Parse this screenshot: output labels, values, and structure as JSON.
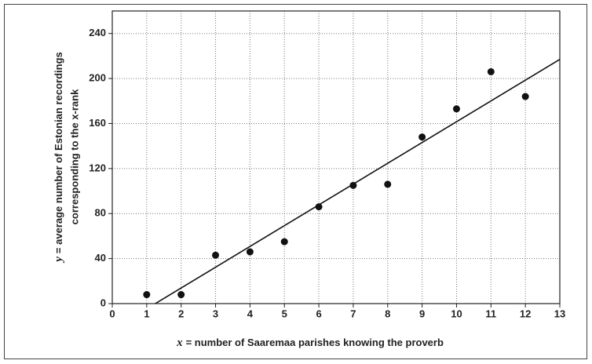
{
  "chart_data": {
    "type": "scatter",
    "xlabel": {
      "var": "x",
      "text": "= number of Saaremaa parishes knowing the proverb"
    },
    "ylabel": {
      "var": "y",
      "lines": [
        "= average number of Estonian recordings",
        "corresponding to the x-rank"
      ]
    },
    "x": [
      1,
      2,
      3,
      4,
      5,
      6,
      7,
      8,
      9,
      10,
      11,
      12
    ],
    "values": [
      8,
      8,
      43,
      46,
      55,
      86,
      105,
      106,
      148,
      173,
      206,
      184
    ],
    "color": "#111111",
    "trend_line": {
      "x": [
        1.25,
        13
      ],
      "y": [
        0,
        217
      ],
      "color": "#111111"
    },
    "xlim": [
      0,
      13
    ],
    "xticks": [
      0,
      1,
      2,
      3,
      4,
      5,
      6,
      7,
      8,
      9,
      10,
      11,
      12,
      13
    ],
    "ylim": [
      0,
      260
    ],
    "yticks": [
      0,
      40,
      80,
      120,
      160,
      200,
      240
    ],
    "grid": true
  }
}
